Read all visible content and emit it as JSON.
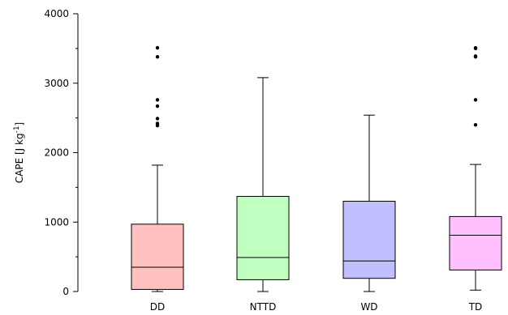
{
  "chart_data": {
    "type": "boxplot",
    "title": "",
    "xlabel": "",
    "ylabel": {
      "prefix": "CAPE [J kg",
      "superscript": "-1",
      "suffix": "]"
    },
    "ylim": [
      0,
      4000
    ],
    "yticks_major": [
      0,
      1000,
      2000,
      3000,
      4000
    ],
    "yticks_minor": [
      500,
      1500,
      2500,
      3500
    ],
    "grid": false,
    "categories": [
      "DD",
      "NTTD",
      "WD",
      "TD"
    ],
    "boxes": [
      {
        "category": "DD",
        "color": "#ffc0c0",
        "whisker_low": 0,
        "q1": 30,
        "median": 350,
        "q3": 970,
        "whisker_high": 1820,
        "outliers": [
          2390,
          2420,
          2490,
          2670,
          2760,
          3380,
          3510
        ]
      },
      {
        "category": "NTTD",
        "color": "#c0ffc0",
        "whisker_low": 0,
        "q1": 170,
        "median": 490,
        "q3": 1370,
        "whisker_high": 3080,
        "outliers": []
      },
      {
        "category": "WD",
        "color": "#c0c0ff",
        "whisker_low": 0,
        "q1": 190,
        "median": 440,
        "q3": 1300,
        "whisker_high": 2540,
        "outliers": []
      },
      {
        "category": "TD",
        "color": "#ffc0ff",
        "whisker_low": 20,
        "q1": 310,
        "median": 810,
        "q3": 1080,
        "whisker_high": 1830,
        "outliers": [
          2400,
          2760,
          3380,
          3390,
          3500,
          3510
        ]
      }
    ]
  }
}
